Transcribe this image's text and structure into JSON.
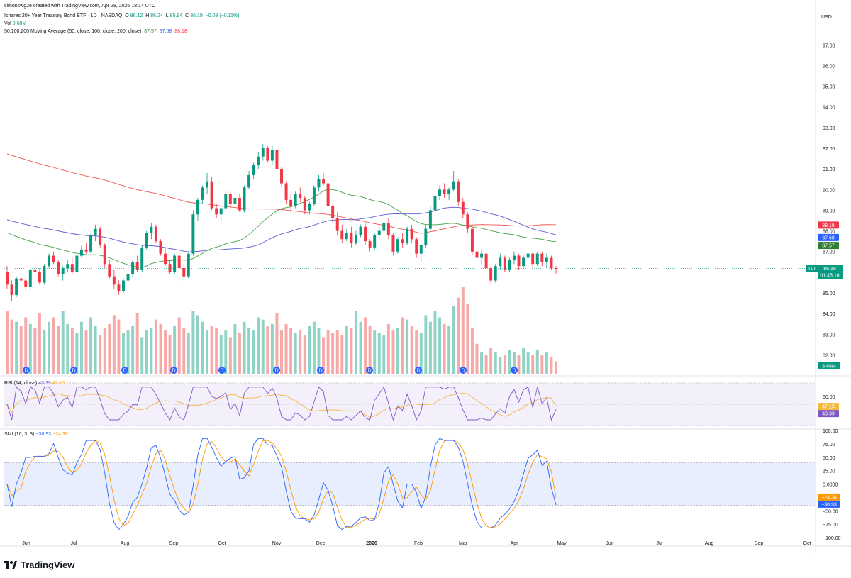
{
  "header": {
    "attribution": "simonswg2e created with TradingView.com, Apr 28, 2026 18:14 UTC",
    "symbol": "Ishares 20+ Year Treasury Bond ETF · 1D · NASDAQ",
    "o_label": "O",
    "o": "86.12",
    "h_label": "H",
    "h": "86.24",
    "l_label": "L",
    "l": "85.94",
    "c_label": "C",
    "c": "86.19",
    "change": "−0.09 (−0.11%)",
    "vol_label": "Vol",
    "vol": "8.68M",
    "ma_label": "50,100,200 Moving Average (50, close, 100, close, 200, close)",
    "ma50": "87.57",
    "ma100": "87.68",
    "ma200": "88.18"
  },
  "currency": "USD",
  "rsi_label": "RSI (14, close)",
  "rsi_value": "43.39",
  "rsi_ma_value": "47.15",
  "smi_label": "SMI (10, 3, 3)",
  "smi_value": "−38.93",
  "smi_signal_value": "−24.38",
  "price_tag": {
    "symbol": "TLT",
    "price": "86.19",
    "countdown": "01:45:16"
  },
  "vol_tag": "8.68M",
  "ma_tags": {
    "ma200": "88.18",
    "ma100": "87.68",
    "ma50": "87.57"
  },
  "footer": {
    "brand": "TradingView"
  },
  "colors": {
    "up": "#089981",
    "down": "#f23645",
    "ma50": "#43a047",
    "ma100": "#5b5bd6",
    "ma200": "#ef5350",
    "rsi": "#7e57c2",
    "rsi_ma": "#f5b83d",
    "smi": "#2962ff",
    "smi_signal": "#ff9800"
  },
  "chart_data": {
    "type": "candlestick",
    "price_axis": {
      "ticks": [
        "97.00",
        "96.00",
        "95.00",
        "94.00",
        "93.00",
        "92.00",
        "91.00",
        "90.00",
        "89.00",
        "88.00",
        "87.00",
        "86.00",
        "85.00",
        "84.00",
        "83.00",
        "82.00"
      ],
      "range": [
        81.5,
        97.8
      ]
    },
    "rsi_axis": {
      "ticks": [
        "60.00",
        "40.00"
      ]
    },
    "smi_axis": {
      "ticks": [
        "100.00",
        "75.00",
        "50.00",
        "25.00",
        "0.0000",
        "−25.00",
        "−50.00",
        "−75.00",
        "−100.00"
      ]
    },
    "time_axis": [
      "Jun",
      "Jul",
      "Aug",
      "Sep",
      "Oct",
      "Nov",
      "Dec",
      "2026",
      "Feb",
      "Mar",
      "Apr",
      "May",
      "Jun",
      "Jul",
      "Aug",
      "Sep",
      "Oct"
    ],
    "dividend_marker": "D",
    "candles": [
      [
        86.0,
        86.3,
        85.2,
        85.4
      ],
      [
        85.4,
        85.6,
        84.6,
        84.9
      ],
      [
        84.9,
        85.8,
        84.8,
        85.7
      ],
      [
        85.7,
        86.1,
        85.4,
        85.6
      ],
      [
        85.6,
        85.8,
        85.1,
        85.3
      ],
      [
        85.3,
        86.2,
        85.2,
        86.1
      ],
      [
        86.1,
        86.5,
        85.9,
        86.0
      ],
      [
        86.0,
        86.2,
        85.4,
        85.5
      ],
      [
        85.5,
        86.4,
        85.4,
        86.3
      ],
      [
        86.3,
        86.9,
        86.2,
        86.8
      ],
      [
        86.8,
        87.0,
        86.4,
        86.5
      ],
      [
        86.5,
        86.6,
        85.8,
        85.9
      ],
      [
        85.9,
        86.3,
        85.6,
        86.2
      ],
      [
        86.2,
        86.6,
        86.0,
        86.4
      ],
      [
        86.4,
        86.7,
        85.9,
        86.0
      ],
      [
        86.0,
        86.9,
        85.9,
        86.8
      ],
      [
        86.8,
        87.3,
        86.7,
        87.1
      ],
      [
        87.1,
        87.4,
        86.9,
        87.0
      ],
      [
        87.0,
        87.9,
        86.9,
        87.8
      ],
      [
        87.8,
        88.3,
        87.5,
        88.1
      ],
      [
        88.1,
        88.2,
        87.2,
        87.3
      ],
      [
        87.3,
        87.4,
        86.2,
        86.4
      ],
      [
        86.4,
        86.6,
        85.7,
        85.8
      ],
      [
        85.8,
        86.1,
        85.2,
        85.4
      ],
      [
        85.4,
        85.6,
        84.9,
        85.1
      ],
      [
        85.1,
        85.7,
        85.0,
        85.6
      ],
      [
        85.6,
        86.0,
        85.4,
        85.9
      ],
      [
        85.9,
        86.6,
        85.8,
        86.5
      ],
      [
        86.5,
        86.8,
        86.0,
        86.1
      ],
      [
        86.1,
        87.3,
        86.0,
        87.2
      ],
      [
        87.2,
        88.0,
        87.1,
        87.9
      ],
      [
        87.9,
        88.4,
        87.6,
        88.2
      ],
      [
        88.2,
        88.3,
        87.4,
        87.5
      ],
      [
        87.5,
        87.6,
        86.8,
        86.9
      ],
      [
        86.9,
        87.2,
        86.3,
        86.4
      ],
      [
        86.4,
        86.6,
        85.9,
        86.0
      ],
      [
        86.0,
        86.9,
        85.9,
        86.8
      ],
      [
        86.8,
        87.0,
        86.1,
        86.2
      ],
      [
        86.2,
        86.4,
        85.6,
        85.8
      ],
      [
        85.8,
        87.0,
        85.7,
        86.9
      ],
      [
        86.9,
        89.0,
        86.8,
        88.8
      ],
      [
        88.8,
        89.6,
        88.5,
        89.5
      ],
      [
        89.5,
        90.2,
        89.3,
        90.1
      ],
      [
        90.1,
        90.8,
        89.8,
        90.4
      ],
      [
        90.4,
        90.6,
        89.0,
        89.1
      ],
      [
        89.1,
        89.3,
        88.6,
        88.8
      ],
      [
        88.8,
        89.2,
        88.5,
        89.1
      ],
      [
        89.1,
        90.0,
        89.0,
        89.8
      ],
      [
        89.8,
        89.9,
        89.1,
        89.3
      ],
      [
        89.3,
        89.7,
        88.8,
        89.6
      ],
      [
        89.6,
        89.8,
        88.9,
        89.0
      ],
      [
        89.0,
        90.2,
        88.9,
        90.1
      ],
      [
        90.1,
        90.9,
        90.0,
        90.7
      ],
      [
        90.7,
        91.3,
        90.5,
        91.2
      ],
      [
        91.2,
        91.8,
        91.0,
        91.6
      ],
      [
        91.6,
        92.2,
        91.4,
        92.0
      ],
      [
        92.0,
        92.1,
        91.3,
        91.4
      ],
      [
        91.4,
        92.1,
        91.2,
        91.9
      ],
      [
        91.9,
        92.0,
        90.9,
        91.0
      ],
      [
        91.0,
        91.1,
        90.1,
        90.3
      ],
      [
        90.3,
        90.4,
        89.3,
        89.5
      ],
      [
        89.5,
        89.8,
        88.9,
        89.2
      ],
      [
        89.2,
        89.9,
        89.1,
        89.8
      ],
      [
        89.8,
        90.1,
        89.4,
        89.6
      ],
      [
        89.6,
        89.7,
        88.8,
        89.0
      ],
      [
        89.0,
        89.4,
        88.8,
        89.3
      ],
      [
        89.3,
        90.2,
        89.2,
        90.1
      ],
      [
        90.1,
        90.7,
        89.9,
        90.5
      ],
      [
        90.5,
        90.8,
        90.2,
        90.3
      ],
      [
        90.3,
        90.4,
        89.1,
        89.2
      ],
      [
        89.2,
        89.3,
        88.4,
        88.6
      ],
      [
        88.6,
        88.9,
        87.8,
        88.0
      ],
      [
        88.0,
        88.3,
        87.4,
        87.6
      ],
      [
        87.6,
        88.1,
        87.5,
        87.9
      ],
      [
        87.9,
        88.2,
        87.2,
        87.4
      ],
      [
        87.4,
        88.0,
        87.3,
        87.8
      ],
      [
        87.8,
        88.3,
        87.7,
        88.2
      ],
      [
        88.2,
        88.4,
        87.3,
        87.5
      ],
      [
        87.5,
        87.6,
        87.0,
        87.2
      ],
      [
        87.2,
        87.9,
        87.1,
        87.8
      ],
      [
        87.8,
        88.2,
        87.6,
        88.0
      ],
      [
        88.0,
        88.5,
        87.9,
        88.4
      ],
      [
        88.4,
        88.6,
        87.6,
        87.8
      ],
      [
        87.8,
        87.9,
        86.8,
        87.0
      ],
      [
        87.0,
        87.7,
        86.9,
        87.6
      ],
      [
        87.6,
        87.9,
        87.2,
        87.4
      ],
      [
        87.4,
        88.2,
        87.3,
        88.1
      ],
      [
        88.1,
        88.3,
        87.4,
        87.6
      ],
      [
        87.6,
        87.7,
        86.7,
        86.9
      ],
      [
        86.9,
        87.4,
        86.5,
        87.3
      ],
      [
        87.3,
        88.3,
        87.2,
        88.1
      ],
      [
        88.1,
        89.2,
        88.0,
        89.0
      ],
      [
        89.0,
        89.9,
        88.9,
        89.7
      ],
      [
        89.7,
        90.2,
        89.5,
        90.0
      ],
      [
        90.0,
        90.3,
        89.6,
        89.8
      ],
      [
        89.8,
        90.1,
        89.5,
        90.0
      ],
      [
        90.0,
        90.9,
        89.9,
        90.4
      ],
      [
        90.4,
        90.5,
        89.2,
        89.4
      ],
      [
        89.4,
        89.6,
        88.6,
        88.8
      ],
      [
        88.8,
        88.9,
        87.9,
        88.1
      ],
      [
        88.1,
        88.2,
        86.8,
        87.0
      ],
      [
        87.0,
        87.3,
        86.5,
        86.7
      ],
      [
        86.7,
        87.1,
        86.4,
        86.9
      ],
      [
        86.9,
        87.0,
        86.0,
        86.2
      ],
      [
        86.2,
        86.3,
        85.4,
        85.6
      ],
      [
        85.6,
        86.4,
        85.5,
        86.3
      ],
      [
        86.3,
        86.9,
        86.1,
        86.7
      ],
      [
        86.7,
        86.8,
        86.0,
        86.1
      ],
      [
        86.1,
        86.7,
        86.0,
        86.6
      ],
      [
        86.6,
        87.0,
        86.4,
        86.8
      ],
      [
        86.8,
        86.9,
        86.1,
        86.3
      ],
      [
        86.3,
        86.8,
        86.2,
        86.7
      ],
      [
        86.7,
        87.1,
        86.5,
        86.9
      ],
      [
        86.9,
        87.0,
        86.2,
        86.4
      ],
      [
        86.4,
        87.0,
        86.3,
        86.9
      ],
      [
        86.9,
        87.0,
        86.3,
        86.5
      ],
      [
        86.5,
        86.9,
        86.2,
        86.7
      ],
      [
        86.7,
        86.8,
        86.1,
        86.2
      ],
      [
        86.2,
        86.3,
        85.9,
        86.19
      ]
    ],
    "volume": [
      2.9,
      2.5,
      2.4,
      2.2,
      2.6,
      2.3,
      2.1,
      2.8,
      2.0,
      2.4,
      2.6,
      2.2,
      2.9,
      2.3,
      2.1,
      1.9,
      2.4,
      2.0,
      2.6,
      2.2,
      1.8,
      2.1,
      2.3,
      2.7,
      2.5,
      1.9,
      2.0,
      2.2,
      2.8,
      1.7,
      2.0,
      2.1,
      2.5,
      2.3,
      2.0,
      1.8,
      2.2,
      2.6,
      2.1,
      1.9,
      2.9,
      2.7,
      2.4,
      2.0,
      2.2,
      2.1,
      1.8,
      2.0,
      1.7,
      2.3,
      1.9,
      2.4,
      2.1,
      2.0,
      2.6,
      2.5,
      2.2,
      2.3,
      2.8,
      2.0,
      2.3,
      2.1,
      1.9,
      2.0,
      1.8,
      2.2,
      2.4,
      2.1,
      1.7,
      2.0,
      1.9,
      2.0,
      1.8,
      2.2,
      2.1,
      2.9,
      2.4,
      2.6,
      2.2,
      2.0,
      1.9,
      1.8,
      2.3,
      2.0,
      2.1,
      2.6,
      2.5,
      2.2,
      2.0,
      1.9,
      2.7,
      2.4,
      2.9,
      2.6,
      2.3,
      2.2,
      3.1,
      3.5,
      4.0,
      3.2,
      2.1,
      1.4,
      1.0,
      0.9,
      1.2,
      1.0,
      0.8,
      0.9,
      1.1,
      1.0,
      0.9,
      1.2,
      1.0,
      0.9,
      1.1,
      0.9,
      1.0,
      0.8,
      0.6
    ],
    "rsi_ma": {
      "last": 47.15
    },
    "rsi": {
      "last": 43.39
    },
    "smi": {
      "last": -38.93
    },
    "smi_signal": {
      "last": -24.38
    }
  }
}
